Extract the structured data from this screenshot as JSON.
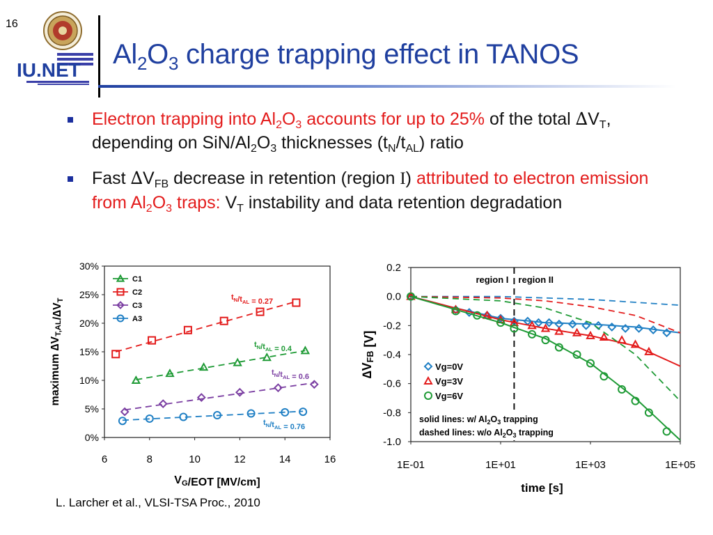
{
  "slide_number": "16",
  "logo": {
    "text": "IU.NET"
  },
  "title": {
    "p1": "Al",
    "s1": "2",
    "p2": "O",
    "s2": "3",
    "p3": " charge trapping effect in TANOS"
  },
  "bullets": [
    {
      "a": "Electron trapping into Al",
      "a_s1": "2",
      "a_b": "O",
      "a_s2": "3",
      "a_c": " accounts for up to 25%",
      "b": " of the total ",
      "delta": "∆",
      "b2": "V",
      "b_s": "T",
      "b3": ", depending on SiN/Al",
      "b_s2": "2",
      "b4": "O",
      "b_s3": "3",
      "b5": " thicknesses (t",
      "b_s4": "N",
      "b6": "/t",
      "b_s5": "AL",
      "b7": ") ratio"
    },
    {
      "a": "Fast ",
      "delta": "∆",
      "a2": "V",
      "a_s": "FB",
      "a3": " decrease in retention (region ",
      "roman": "I",
      "a4": ") ",
      "r1": "attributed to electron emission from Al",
      "r_s1": "2",
      "r2": "O",
      "r_s2": "3",
      "r3": " traps:",
      "c": " V",
      "c_s": "T",
      "c2": " instability and data retention degradation"
    }
  ],
  "citation": "L. Larcher et al., VLSI-TSA Proc., 2010",
  "chart_data": [
    {
      "type": "line",
      "xlabel": "V_G/EOT [MV/cm]",
      "ylabel": "maximum ∆V_T,AL/∆V_T",
      "xlim": [
        6,
        16
      ],
      "ylim": [
        0,
        30
      ],
      "xticks": [
        "6",
        "8",
        "10",
        "12",
        "14",
        "16"
      ],
      "yticks": [
        "0%",
        "5%",
        "10%",
        "15%",
        "20%",
        "25%",
        "30%"
      ],
      "legend_position": "top-left",
      "series": [
        {
          "name": "C1",
          "marker": "triangle",
          "color": "#1e9a35",
          "label": "t_N/t_AL = 0.4",
          "x": [
            7.4,
            8.9,
            10.4,
            11.9,
            13.2,
            14.9
          ],
          "y": [
            10.0,
            11.2,
            12.3,
            13.1,
            14.0,
            15.2
          ]
        },
        {
          "name": "C2",
          "marker": "square",
          "color": "#e31b1b",
          "label": "t_N/t_AL = 0.27",
          "x": [
            6.5,
            8.1,
            9.7,
            11.3,
            12.9,
            14.5
          ],
          "y": [
            14.6,
            17.0,
            18.8,
            20.4,
            22.0,
            23.6
          ]
        },
        {
          "name": "C3",
          "marker": "diamond",
          "color": "#7b3fa2",
          "label": "t_N/t_AL = 0.6",
          "x": [
            6.9,
            8.6,
            10.3,
            12.0,
            13.7,
            15.3
          ],
          "y": [
            4.5,
            5.9,
            7.0,
            7.9,
            8.7,
            9.3
          ]
        },
        {
          "name": "A3",
          "marker": "circle",
          "color": "#1f7fc4",
          "label": "t_N/t_AL = 0.76",
          "x": [
            6.8,
            8.0,
            9.5,
            11.0,
            12.5,
            14.0,
            14.8
          ],
          "y": [
            2.9,
            3.3,
            3.6,
            3.9,
            4.2,
            4.4,
            4.5
          ]
        }
      ]
    },
    {
      "type": "line",
      "xlabel": "time [s]",
      "ylabel": "∆V_FB [V]",
      "xscale": "log",
      "xlim": [
        0.1,
        100000
      ],
      "ylim": [
        -1.0,
        0.2
      ],
      "xticks": [
        "1E-01",
        "1E+01",
        "1E+03",
        "1E+05"
      ],
      "yticks": [
        "0.2",
        "0.0",
        "-0.2",
        "-0.4",
        "-0.6",
        "-0.8",
        "-1.0"
      ],
      "region_labels": [
        "region I",
        "region II"
      ],
      "region_boundary_x": 20,
      "legend_position": "bottom-left",
      "notes": [
        "solid lines: w/ Al2O3 trapping",
        "dashed lines: w/o Al2O3 trapping"
      ],
      "series": [
        {
          "name": "Vg=0V",
          "marker": "diamond",
          "color": "#1f7fc4",
          "x": [
            0.1,
            1,
            2,
            5,
            10,
            20,
            40,
            70,
            120,
            200,
            400,
            800,
            1500,
            3000,
            6000,
            12000,
            25000,
            50000
          ],
          "y": [
            0.0,
            -0.09,
            -0.11,
            -0.13,
            -0.15,
            -0.17,
            -0.17,
            -0.18,
            -0.18,
            -0.19,
            -0.19,
            -0.2,
            -0.2,
            -0.21,
            -0.22,
            -0.22,
            -0.23,
            -0.25
          ],
          "model_with_trapping": [
            [
              0.1,
              0.0
            ],
            [
              1,
              -0.08
            ],
            [
              10,
              -0.15
            ],
            [
              100,
              -0.18
            ],
            [
              1000,
              -0.19
            ],
            [
              10000,
              -0.21
            ],
            [
              100000,
              -0.25
            ]
          ],
          "model_without_trapping": [
            [
              0.1,
              0.0
            ],
            [
              10,
              0.0
            ],
            [
              100,
              -0.01
            ],
            [
              1000,
              -0.02
            ],
            [
              10000,
              -0.04
            ],
            [
              100000,
              -0.06
            ]
          ]
        },
        {
          "name": "Vg=3V",
          "marker": "triangle",
          "color": "#e31b1b",
          "x": [
            0.1,
            1,
            5,
            10,
            20,
            50,
            100,
            200,
            500,
            1000,
            2000,
            5000,
            10000,
            20000
          ],
          "y": [
            0.0,
            -0.09,
            -0.13,
            -0.16,
            -0.18,
            -0.2,
            -0.22,
            -0.24,
            -0.25,
            -0.27,
            -0.28,
            -0.3,
            -0.33,
            -0.38
          ],
          "model_with_trapping": [
            [
              0.1,
              0.0
            ],
            [
              1,
              -0.08
            ],
            [
              10,
              -0.16
            ],
            [
              100,
              -0.22
            ],
            [
              1000,
              -0.27
            ],
            [
              10000,
              -0.34
            ],
            [
              100000,
              -0.48
            ]
          ],
          "model_without_trapping": [
            [
              0.1,
              0.0
            ],
            [
              10,
              -0.01
            ],
            [
              100,
              -0.03
            ],
            [
              1000,
              -0.07
            ],
            [
              10000,
              -0.13
            ],
            [
              100000,
              -0.25
            ]
          ]
        },
        {
          "name": "Vg=6V",
          "marker": "circle",
          "color": "#1e9a35",
          "x": [
            0.1,
            1,
            3,
            10,
            20,
            50,
            100,
            200,
            500,
            1000,
            2000,
            5000,
            10000,
            20000,
            50000
          ],
          "y": [
            0.0,
            -0.1,
            -0.13,
            -0.18,
            -0.22,
            -0.26,
            -0.3,
            -0.35,
            -0.4,
            -0.46,
            -0.55,
            -0.64,
            -0.72,
            -0.8,
            -0.93
          ],
          "model_with_trapping": [
            [
              0.1,
              0.0
            ],
            [
              1,
              -0.09
            ],
            [
              10,
              -0.18
            ],
            [
              100,
              -0.29
            ],
            [
              1000,
              -0.46
            ],
            [
              10000,
              -0.7
            ],
            [
              100000,
              -0.99
            ]
          ],
          "model_without_trapping": [
            [
              0.1,
              0.0
            ],
            [
              10,
              -0.03
            ],
            [
              100,
              -0.08
            ],
            [
              1000,
              -0.18
            ],
            [
              10000,
              -0.4
            ],
            [
              100000,
              -0.72
            ]
          ]
        }
      ]
    }
  ]
}
